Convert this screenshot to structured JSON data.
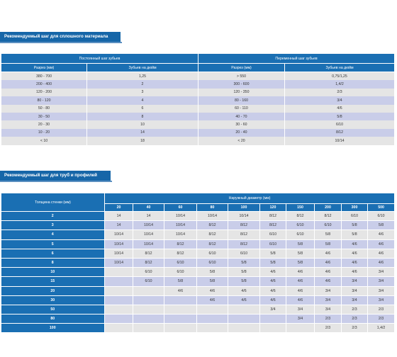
{
  "section1": {
    "title": "Рекомендуемый шаг для сплошного материала",
    "constant_header": "Постоянный шаг зубьев",
    "variable_header": "Переменный шаг зубьев",
    "col_section": "Разрез (мм)",
    "col_tpi": "Зубьев на дюйм",
    "rows": [
      {
        "c_size": "380 - 700",
        "c_tpi": "1,25",
        "v_size": "> 550",
        "v_tpi": "0,75/1,25"
      },
      {
        "c_size": "200 - 400",
        "c_tpi": "2",
        "v_size": "300 - 600",
        "v_tpi": "1,4/2"
      },
      {
        "c_size": "120 - 200",
        "c_tpi": "3",
        "v_size": "120 - 350",
        "v_tpi": "2/3"
      },
      {
        "c_size": "80 - 120",
        "c_tpi": "4",
        "v_size": "80 - 160",
        "v_tpi": "3/4"
      },
      {
        "c_size": "50 - 80",
        "c_tpi": "6",
        "v_size": "60 - 110",
        "v_tpi": "4/6"
      },
      {
        "c_size": "30 - 50",
        "c_tpi": "8",
        "v_size": "40 - 70",
        "v_tpi": "5/8"
      },
      {
        "c_size": "20 - 30",
        "c_tpi": "10",
        "v_size": "30 - 60",
        "v_tpi": "6/10"
      },
      {
        "c_size": "10 - 20",
        "c_tpi": "14",
        "v_size": "20 - 40",
        "v_tpi": "8/12"
      },
      {
        "c_size": "< 10",
        "c_tpi": "18",
        "v_size": "< 20",
        "v_tpi": "10/14"
      }
    ]
  },
  "section2": {
    "title": "Рекомендуемый шаг для труб и профилей",
    "wall_header": "Толщина стенки (мм)",
    "diameter_header": "Наружный диаметр (мм)",
    "diameters": [
      "20",
      "40",
      "60",
      "80",
      "100",
      "120",
      "150",
      "200",
      "300",
      "500"
    ],
    "rows": [
      {
        "wall": "2",
        "cells": [
          "14",
          "14",
          "10/14",
          "10/14",
          "10/14",
          "8/12",
          "8/12",
          "8/12",
          "6/10",
          "6/10"
        ]
      },
      {
        "wall": "3",
        "cells": [
          "14",
          "10/14",
          "10/14",
          "8/12",
          "8/12",
          "8/12",
          "6/10",
          "6/10",
          "5/8",
          "5/8"
        ]
      },
      {
        "wall": "4",
        "cells": [
          "10/14",
          "10/14",
          "10/14",
          "8/12",
          "8/12",
          "6/10",
          "6/10",
          "5/8",
          "5/8",
          "4/6"
        ]
      },
      {
        "wall": "5",
        "cells": [
          "10/14",
          "10/14",
          "8/12",
          "8/12",
          "8/12",
          "6/10",
          "5/8",
          "5/8",
          "4/6",
          "4/6"
        ]
      },
      {
        "wall": "6",
        "cells": [
          "10/14",
          "8/12",
          "8/12",
          "6/10",
          "6/10",
          "5/8",
          "5/8",
          "4/6",
          "4/6",
          "4/6"
        ]
      },
      {
        "wall": "8",
        "cells": [
          "10/14",
          "8/12",
          "6/10",
          "6/10",
          "5/8",
          "5/8",
          "5/8",
          "4/6",
          "4/6",
          "4/6"
        ]
      },
      {
        "wall": "10",
        "cells": [
          "",
          "6/10",
          "6/10",
          "5/8",
          "5/8",
          "4/6",
          "4/6",
          "4/6",
          "4/6",
          "3/4"
        ]
      },
      {
        "wall": "15",
        "cells": [
          "",
          "6/10",
          "5/8",
          "5/8",
          "5/8",
          "4/6",
          "4/6",
          "4/6",
          "3/4",
          "3/4"
        ]
      },
      {
        "wall": "20",
        "cells": [
          "",
          "",
          "4/6",
          "4/6",
          "4/6",
          "4/6",
          "4/6",
          "3/4",
          "3/4",
          "3/4"
        ]
      },
      {
        "wall": "30",
        "cells": [
          "",
          "",
          "",
          "4/6",
          "4/6",
          "4/6",
          "4/6",
          "3/4",
          "3/4",
          "3/4"
        ]
      },
      {
        "wall": "50",
        "cells": [
          "",
          "",
          "",
          "",
          "",
          "3/4",
          "3/4",
          "3/4",
          "2/3",
          "2/3"
        ]
      },
      {
        "wall": "80",
        "cells": [
          "",
          "",
          "",
          "",
          "",
          "",
          "3/4",
          "2/3",
          "2/3",
          "2/3"
        ]
      },
      {
        "wall": "100",
        "cells": [
          "",
          "",
          "",
          "",
          "",
          "",
          "",
          "2/3",
          "2/3",
          "1,4/2"
        ]
      }
    ]
  },
  "colors": {
    "header_blue": "#1a6fb3",
    "title_blue": "#1666a8",
    "row_gray": "#e5e5e5",
    "row_lavender": "#c9cde9"
  }
}
